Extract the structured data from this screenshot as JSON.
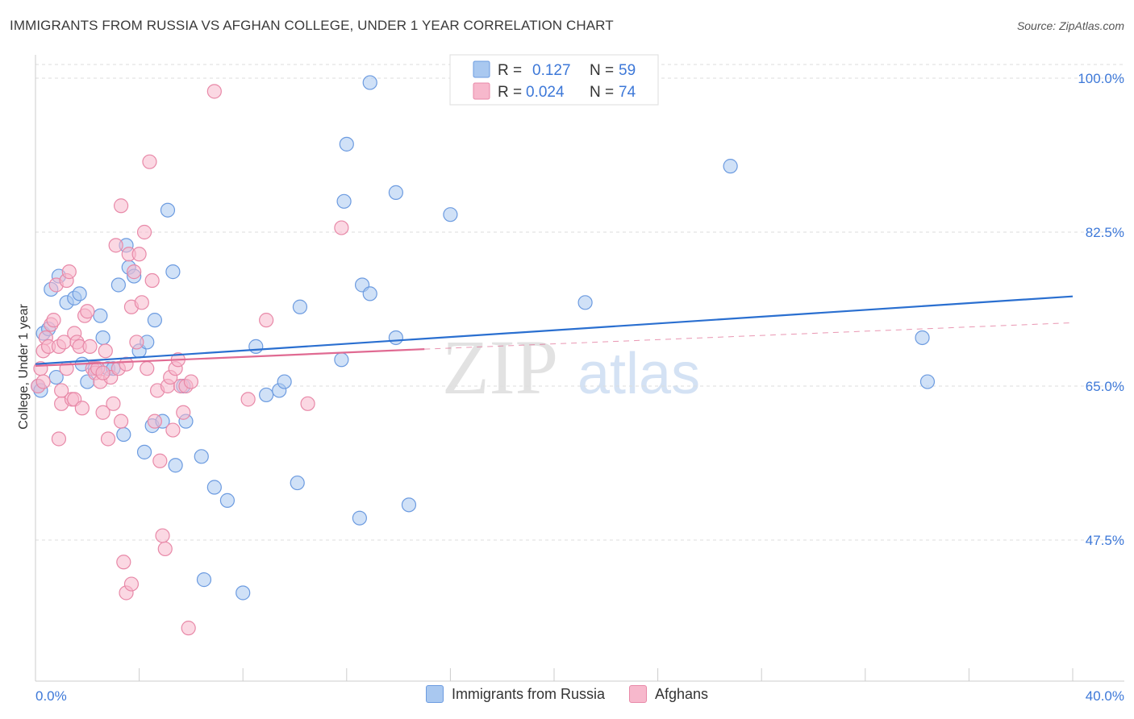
{
  "header": {
    "title": "IMMIGRANTS FROM RUSSIA VS AFGHAN COLLEGE, UNDER 1 YEAR CORRELATION CHART",
    "source": "Source: ZipAtlas.com"
  },
  "watermark": {
    "zip": "ZIP",
    "atlas": "atlas"
  },
  "legend_top": {
    "rows": [
      {
        "r_label": "R =",
        "r_value": "0.127",
        "n_label": "N =",
        "n_value": "59"
      },
      {
        "r_label": "R =",
        "r_value": "0.024",
        "n_label": "N =",
        "n_value": "74"
      }
    ]
  },
  "legend_bottom": {
    "items": [
      "Immigrants from Russia",
      "Afghans"
    ]
  },
  "colors": {
    "russia_fill": "#a9c8f0",
    "russia_stroke": "#6c9be0",
    "russia_line": "#2a6fd0",
    "afghan_fill": "#f7b8cc",
    "afghan_stroke": "#e889a8",
    "afghan_line": "#e06a92",
    "axis_label": "#3d78d8",
    "grid": "#dddddd"
  },
  "chart_data": {
    "type": "scatter",
    "title": "IMMIGRANTS FROM RUSSIA VS AFGHAN COLLEGE, UNDER 1 YEAR CORRELATION CHART",
    "xlabel": "",
    "ylabel": "College, Under 1 year",
    "xlim": [
      0,
      40
    ],
    "ylim": [
      30,
      102
    ],
    "x_tick_labels": [
      "0.0%",
      "40.0%"
    ],
    "y_ticks": [
      47.5,
      65.0,
      82.5,
      100.0
    ],
    "y_tick_labels": [
      "47.5%",
      "65.0%",
      "82.5%",
      "100.0%"
    ],
    "grid": "horizontal dashed",
    "legend": "top-center",
    "series": [
      {
        "name": "Immigrants from Russia",
        "r": 0.127,
        "n": 59,
        "trend": {
          "x": [
            0,
            40
          ],
          "y": [
            67.5,
            75.2
          ],
          "style": "solid"
        },
        "points": [
          [
            0.1,
            65.0
          ],
          [
            0.3,
            71.0
          ],
          [
            0.5,
            71.5
          ],
          [
            0.8,
            66.0
          ],
          [
            0.9,
            77.5
          ],
          [
            0.6,
            76.0
          ],
          [
            1.2,
            74.5
          ],
          [
            1.5,
            75.0
          ],
          [
            1.7,
            75.5
          ],
          [
            1.8,
            67.5
          ],
          [
            2.0,
            65.5
          ],
          [
            2.3,
            67.0
          ],
          [
            2.5,
            73.0
          ],
          [
            2.6,
            70.5
          ],
          [
            2.8,
            67.0
          ],
          [
            3.0,
            67.0
          ],
          [
            3.2,
            76.5
          ],
          [
            3.4,
            59.5
          ],
          [
            3.5,
            81.0
          ],
          [
            3.6,
            78.5
          ],
          [
            3.8,
            77.5
          ],
          [
            4.0,
            69.0
          ],
          [
            4.2,
            57.5
          ],
          [
            4.3,
            70.0
          ],
          [
            4.5,
            60.5
          ],
          [
            4.6,
            72.5
          ],
          [
            4.9,
            61.0
          ],
          [
            5.1,
            85.0
          ],
          [
            5.3,
            78.0
          ],
          [
            5.4,
            56.0
          ],
          [
            5.7,
            65.0
          ],
          [
            5.8,
            61.0
          ],
          [
            6.4,
            57.0
          ],
          [
            6.5,
            43.0
          ],
          [
            6.9,
            53.5
          ],
          [
            7.4,
            52.0
          ],
          [
            8.0,
            41.5
          ],
          [
            8.5,
            69.5
          ],
          [
            8.9,
            64.0
          ],
          [
            9.4,
            64.5
          ],
          [
            9.6,
            65.5
          ],
          [
            10.1,
            54.0
          ],
          [
            10.2,
            74.0
          ],
          [
            11.8,
            68.0
          ],
          [
            11.9,
            86.0
          ],
          [
            12.0,
            92.5
          ],
          [
            12.5,
            50.0
          ],
          [
            12.6,
            76.5
          ],
          [
            12.9,
            75.5
          ],
          [
            12.9,
            99.5
          ],
          [
            13.9,
            87.0
          ],
          [
            13.9,
            70.5
          ],
          [
            14.4,
            51.5
          ],
          [
            16.0,
            84.5
          ],
          [
            21.2,
            74.5
          ],
          [
            26.8,
            90.0
          ],
          [
            34.2,
            70.5
          ],
          [
            34.4,
            65.5
          ],
          [
            0.2,
            64.5
          ]
        ]
      },
      {
        "name": "Afghans",
        "r": 0.024,
        "n": 74,
        "trend": {
          "x": [
            0,
            15
          ],
          "y": [
            67.3,
            69.2
          ],
          "style": "solid",
          "extended_to": {
            "x": 40,
            "y": 72.2,
            "style": "dashed"
          }
        },
        "points": [
          [
            0.1,
            65.0
          ],
          [
            0.2,
            67.0
          ],
          [
            0.3,
            69.0
          ],
          [
            0.4,
            70.5
          ],
          [
            0.5,
            69.5
          ],
          [
            0.6,
            72.0
          ],
          [
            0.7,
            72.5
          ],
          [
            0.8,
            76.5
          ],
          [
            0.9,
            59.0
          ],
          [
            0.9,
            69.5
          ],
          [
            1.0,
            63.0
          ],
          [
            1.1,
            70.0
          ],
          [
            1.2,
            77.0
          ],
          [
            1.2,
            67.0
          ],
          [
            1.3,
            78.0
          ],
          [
            1.4,
            63.5
          ],
          [
            1.5,
            63.5
          ],
          [
            1.5,
            71.0
          ],
          [
            1.6,
            70.0
          ],
          [
            1.7,
            69.5
          ],
          [
            1.8,
            62.5
          ],
          [
            1.9,
            73.0
          ],
          [
            2.0,
            73.5
          ],
          [
            2.1,
            69.5
          ],
          [
            2.2,
            67.0
          ],
          [
            2.3,
            66.5
          ],
          [
            2.4,
            67.0
          ],
          [
            2.5,
            65.5
          ],
          [
            2.6,
            62.0
          ],
          [
            2.7,
            69.0
          ],
          [
            2.8,
            59.0
          ],
          [
            2.9,
            66.0
          ],
          [
            3.0,
            63.0
          ],
          [
            3.1,
            81.0
          ],
          [
            3.2,
            67.0
          ],
          [
            3.3,
            85.5
          ],
          [
            3.4,
            45.0
          ],
          [
            3.5,
            67.5
          ],
          [
            3.6,
            80.0
          ],
          [
            3.7,
            74.0
          ],
          [
            3.8,
            78.0
          ],
          [
            3.9,
            70.0
          ],
          [
            4.0,
            80.0
          ],
          [
            4.1,
            74.5
          ],
          [
            4.2,
            82.5
          ],
          [
            4.3,
            67.0
          ],
          [
            4.4,
            90.5
          ],
          [
            4.5,
            77.0
          ],
          [
            4.6,
            61.0
          ],
          [
            4.7,
            64.5
          ],
          [
            4.8,
            56.5
          ],
          [
            4.9,
            48.0
          ],
          [
            5.0,
            46.5
          ],
          [
            5.1,
            65.0
          ],
          [
            5.2,
            66.0
          ],
          [
            5.3,
            60.0
          ],
          [
            5.4,
            67.0
          ],
          [
            5.5,
            68.0
          ],
          [
            5.6,
            65.0
          ],
          [
            5.7,
            62.0
          ],
          [
            5.8,
            65.0
          ],
          [
            5.9,
            37.5
          ],
          [
            3.5,
            41.5
          ],
          [
            3.7,
            42.5
          ],
          [
            3.3,
            61.0
          ],
          [
            2.6,
            66.5
          ],
          [
            6.0,
            65.5
          ],
          [
            6.9,
            98.5
          ],
          [
            8.2,
            63.5
          ],
          [
            8.9,
            72.5
          ],
          [
            10.5,
            63.0
          ],
          [
            11.8,
            83.0
          ],
          [
            0.3,
            65.5
          ],
          [
            1.0,
            64.5
          ]
        ]
      }
    ]
  }
}
